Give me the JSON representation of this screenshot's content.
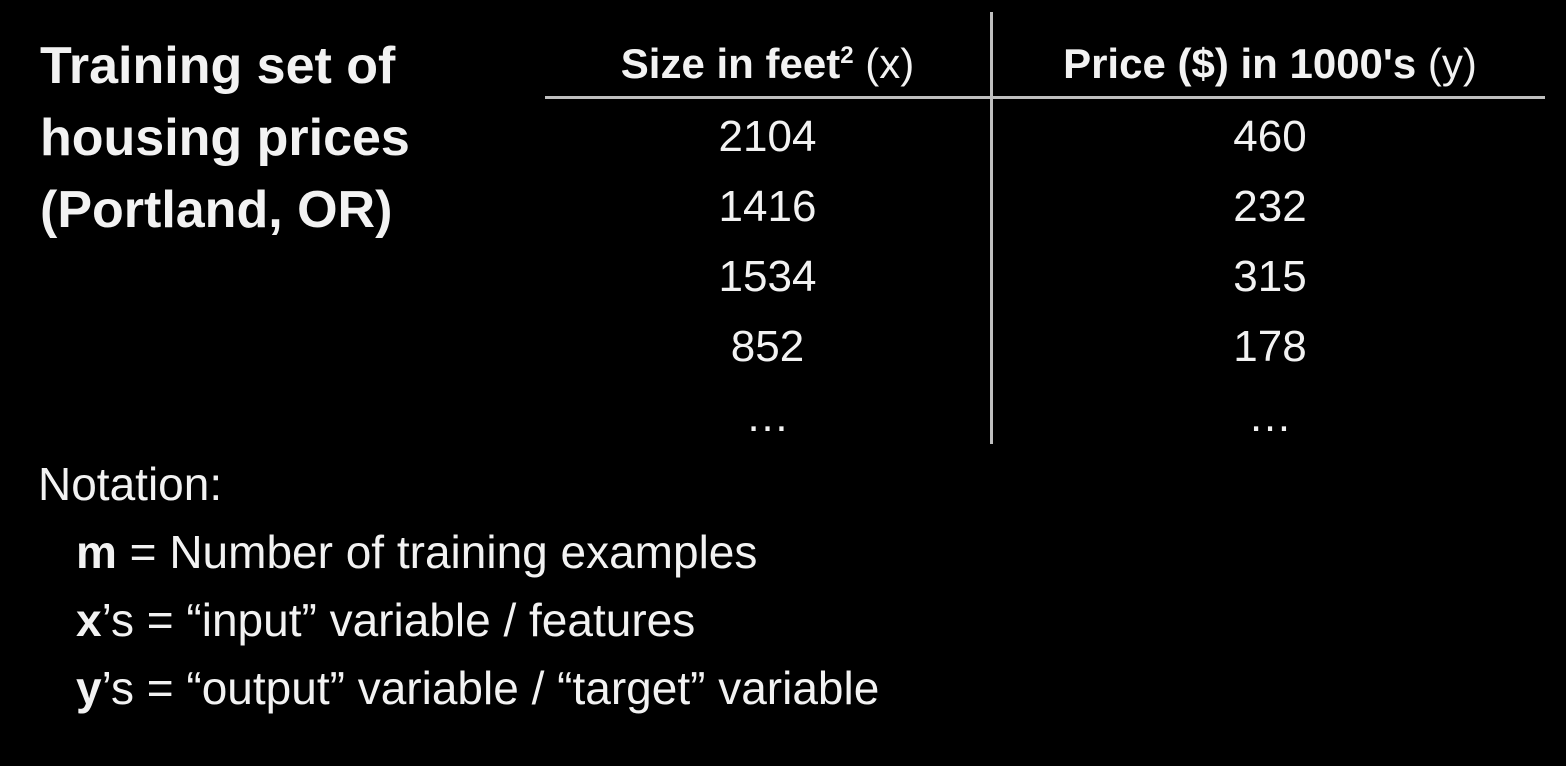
{
  "title": {
    "lines": [
      "Training set of",
      "housing prices",
      "(Portland, OR)"
    ]
  },
  "table": {
    "headers": {
      "size": {
        "main": "Size in feet",
        "superscript": "2",
        "suffix": " (x)"
      },
      "price": {
        "main": "Price ($) in 1000's",
        "suffix": " (y)"
      }
    },
    "size_values": [
      "2104",
      "1416",
      "1534",
      "852",
      "…"
    ],
    "price_values": [
      "460",
      "232",
      "315",
      "178",
      "…"
    ]
  },
  "notation": {
    "heading": "Notation:",
    "items": [
      {
        "symbol": "m",
        "text": " = Number of training examples"
      },
      {
        "symbol": "x",
        "text": "’s = “input” variable / features"
      },
      {
        "symbol": "y",
        "text": "’s = “output” variable / “target” variable"
      }
    ]
  }
}
